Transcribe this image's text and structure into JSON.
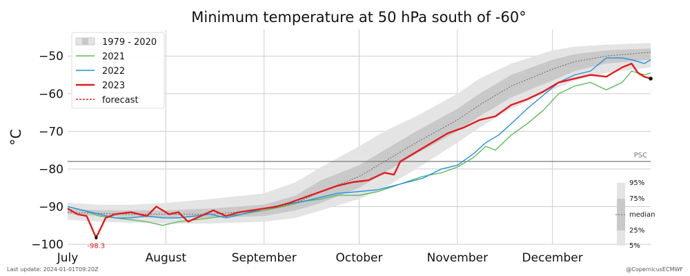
{
  "chart_data": {
    "type": "line",
    "title": "Minimum temperature at 50 hPa south of -60°",
    "ylabel": "°C",
    "xlabel": "",
    "ylim": [
      -100,
      -43
    ],
    "yticks": [
      -100,
      -90,
      -80,
      -70,
      -60,
      -50
    ],
    "xlim_day": [
      0,
      184
    ],
    "x_tick_labels": [
      {
        "label": "July",
        "day": 0
      },
      {
        "label": "August",
        "day": 31
      },
      {
        "label": "September",
        "day": 62
      },
      {
        "label": "October",
        "day": 92
      },
      {
        "label": "November",
        "day": 123
      },
      {
        "label": "December",
        "day": 153
      }
    ],
    "grid": true,
    "legend_position": "top-left",
    "legend": [
      {
        "label": "1979 - 2020",
        "kind": "band"
      },
      {
        "label": "2021",
        "kind": "line",
        "color": "#5cb85c"
      },
      {
        "label": "2022",
        "kind": "line",
        "color": "#1f8fe0"
      },
      {
        "label": "2023",
        "kind": "line",
        "color": "#e31a1c"
      },
      {
        "label": "forecast",
        "kind": "dashed",
        "color": "#e31a1c"
      }
    ],
    "psc": {
      "label": "PSC",
      "value": -78
    },
    "min_annotation": {
      "label": "-98.3",
      "day": 9,
      "value": -98.3
    },
    "percentile_legend": [
      "95%",
      "75%",
      "median",
      "25%",
      "5%"
    ],
    "climatology": {
      "days": [
        0,
        10,
        20,
        31,
        45,
        62,
        72,
        80,
        92,
        100,
        110,
        123,
        130,
        140,
        153,
        160,
        170,
        184
      ],
      "p5": [
        -93.5,
        -94.0,
        -94.3,
        -94.5,
        -94.5,
        -94.0,
        -93.0,
        -91.0,
        -88.0,
        -85.0,
        -80.0,
        -73.0,
        -69.0,
        -64.0,
        -59.0,
        -56.5,
        -54.5,
        -53.0
      ],
      "p25": [
        -92.0,
        -92.5,
        -92.8,
        -93.0,
        -93.0,
        -92.5,
        -91.0,
        -89.0,
        -85.0,
        -81.0,
        -76.0,
        -70.0,
        -66.0,
        -61.0,
        -56.5,
        -54.0,
        -52.0,
        -51.0
      ],
      "median": [
        -91.5,
        -91.8,
        -92.0,
        -92.0,
        -92.0,
        -91.0,
        -89.0,
        -86.0,
        -82.0,
        -78.0,
        -73.0,
        -67.0,
        -63.0,
        -58.0,
        -53.5,
        -51.5,
        -50.0,
        -49.0
      ],
      "p75": [
        -90.5,
        -91.0,
        -91.0,
        -91.0,
        -90.5,
        -89.5,
        -87.0,
        -83.0,
        -79.0,
        -75.0,
        -70.0,
        -64.0,
        -60.0,
        -55.0,
        -51.0,
        -49.5,
        -48.5,
        -48.0
      ],
      "p95": [
        -89.0,
        -89.5,
        -89.5,
        -89.0,
        -88.0,
        -86.5,
        -83.5,
        -79.5,
        -74.0,
        -70.0,
        -66.0,
        -60.0,
        -56.0,
        -52.0,
        -48.5,
        -47.5,
        -47.0,
        -46.5
      ]
    },
    "series": [
      {
        "name": "2021",
        "color": "#5cb85c",
        "x": [
          0,
          5,
          10,
          15,
          20,
          25,
          30,
          35,
          40,
          45,
          50,
          55,
          62,
          68,
          75,
          80,
          85,
          92,
          98,
          105,
          112,
          118,
          123,
          128,
          132,
          135,
          140,
          145,
          150,
          155,
          160,
          165,
          170,
          175,
          178,
          182,
          184
        ],
        "values": [
          -90.0,
          -91.0,
          -92.5,
          -93.0,
          -93.5,
          -94.0,
          -95.0,
          -94.0,
          -93.5,
          -93.0,
          -92.5,
          -92.0,
          -91.0,
          -90.0,
          -88.5,
          -88.0,
          -87.0,
          -87.0,
          -86.0,
          -84.0,
          -82.0,
          -81.0,
          -79.5,
          -77.0,
          -74.0,
          -75.0,
          -71.0,
          -68.0,
          -64.5,
          -60.0,
          -58.0,
          -57.0,
          -59.0,
          -57.0,
          -54.0,
          -55.0,
          -54.5
        ]
      },
      {
        "name": "2022",
        "color": "#1f8fe0",
        "x": [
          0,
          5,
          10,
          15,
          20,
          25,
          30,
          35,
          40,
          45,
          50,
          55,
          62,
          68,
          75,
          80,
          85,
          92,
          98,
          105,
          112,
          118,
          123,
          128,
          132,
          136,
          140,
          145,
          150,
          155,
          160,
          165,
          170,
          175,
          178,
          182,
          184
        ],
        "values": [
          -90.0,
          -91.0,
          -92.0,
          -93.0,
          -93.0,
          -92.5,
          -93.0,
          -93.0,
          -92.5,
          -92.0,
          -93.0,
          -92.0,
          -90.5,
          -89.5,
          -88.5,
          -87.5,
          -86.5,
          -86.0,
          -85.5,
          -84.0,
          -82.5,
          -80.0,
          -79.0,
          -76.0,
          -73.0,
          -71.0,
          -68.0,
          -64.0,
          -60.5,
          -57.0,
          -55.0,
          -54.0,
          -50.5,
          -50.5,
          -51.0,
          -52.0,
          -51.0
        ]
      },
      {
        "name": "2023",
        "color": "#e31a1c",
        "x": [
          0,
          3,
          6,
          9,
          12,
          15,
          20,
          25,
          28,
          32,
          35,
          38,
          42,
          46,
          50,
          54,
          58,
          62,
          66,
          70,
          75,
          80,
          85,
          90,
          95,
          100,
          103,
          105,
          110,
          115,
          120,
          125,
          130,
          135,
          140,
          145,
          150,
          155,
          160,
          165,
          170,
          175,
          178,
          180,
          182,
          184
        ],
        "values": [
          -90.5,
          -92.0,
          -92.5,
          -98.3,
          -93.0,
          -92.0,
          -91.5,
          -92.5,
          -90.0,
          -92.0,
          -91.5,
          -94.0,
          -92.5,
          -91.0,
          -92.5,
          -91.5,
          -91.0,
          -90.5,
          -90.0,
          -89.0,
          -87.5,
          -86.0,
          -84.5,
          -83.5,
          -83.0,
          -81.0,
          -81.5,
          -78.0,
          -75.5,
          -73.0,
          -70.5,
          -69.0,
          -67.0,
          -66.0,
          -63.0,
          -61.5,
          -59.5,
          -57.0,
          -56.0,
          -55.0,
          -55.5,
          -53.0,
          -52.0,
          -54.5,
          -55.5,
          -56.0
        ]
      }
    ]
  },
  "footer": {
    "last_update": "Last update: 2024-01-01T09:20Z",
    "credit": "@CopernicusECMWF"
  }
}
